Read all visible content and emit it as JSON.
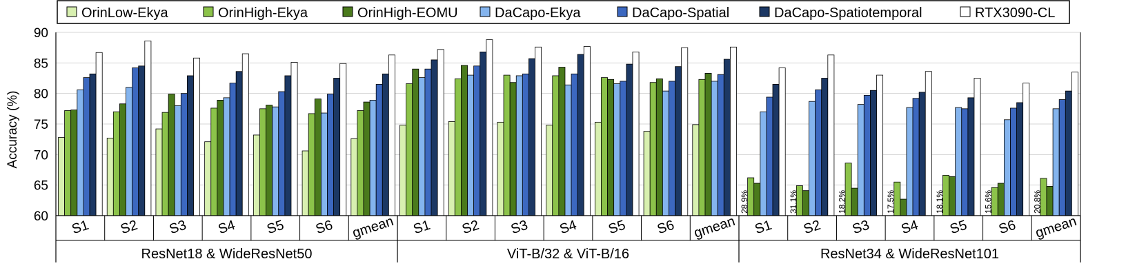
{
  "chart_data": {
    "type": "bar",
    "ylabel": "Accuracy (%)",
    "ylim": [
      60,
      90
    ],
    "yticks": [
      "60",
      "65",
      "70",
      "75",
      "80",
      "85",
      "90"
    ],
    "grid": true,
    "legend_position": "top",
    "series": [
      {
        "name": "OrinLow-Ekya",
        "color": "#d8f0b0"
      },
      {
        "name": "OrinHigh-Ekya",
        "color": "#8cc34a"
      },
      {
        "name": "OrinHigh-EOMU",
        "color": "#4a7a1c"
      },
      {
        "name": "DaCapo-Ekya",
        "color": "#84b4ee"
      },
      {
        "name": "DaCapo-Spatial",
        "color": "#3c68c0"
      },
      {
        "name": "DaCapo-Spatiotemporal",
        "color": "#1c3864"
      },
      {
        "name": "RTX3090-CL",
        "color": "#ffffff"
      }
    ],
    "groups": [
      {
        "name": "ResNet18 & WideResNet50",
        "categories": [
          "S1",
          "S2",
          "S3",
          "S4",
          "S5",
          "S6",
          "gmean"
        ],
        "values": [
          [
            72.8,
            77.2,
            77.3,
            80.6,
            82.6,
            83.2,
            86.7
          ],
          [
            72.7,
            77.0,
            78.3,
            81.0,
            84.2,
            84.5,
            88.6
          ],
          [
            74.2,
            76.9,
            79.9,
            78.0,
            80.0,
            82.9,
            85.8
          ],
          [
            72.1,
            77.6,
            78.9,
            79.3,
            81.7,
            83.6,
            86.5
          ],
          [
            73.2,
            77.5,
            78.1,
            77.8,
            80.3,
            82.9,
            85.1
          ],
          [
            70.6,
            76.7,
            79.1,
            76.8,
            79.9,
            82.5,
            84.9
          ],
          [
            72.6,
            77.2,
            78.6,
            78.9,
            81.5,
            83.2,
            86.3
          ]
        ]
      },
      {
        "name": "ViT-B/32 & ViT-B/16",
        "categories": [
          "S1",
          "S2",
          "S3",
          "S4",
          "S5",
          "S6",
          "gmean"
        ],
        "values": [
          [
            74.8,
            81.6,
            84.0,
            82.6,
            84.0,
            85.5,
            87.2
          ],
          [
            75.4,
            82.4,
            84.6,
            83.0,
            84.5,
            86.8,
            88.8
          ],
          [
            75.3,
            83.0,
            81.8,
            82.9,
            83.2,
            85.7,
            87.6
          ],
          [
            74.8,
            82.9,
            84.3,
            81.4,
            83.2,
            86.4,
            87.7
          ],
          [
            75.3,
            82.6,
            82.3,
            81.6,
            82.0,
            84.8,
            86.8
          ],
          [
            73.8,
            81.8,
            82.4,
            80.4,
            82.0,
            84.4,
            87.5
          ],
          [
            74.9,
            82.3,
            83.3,
            82.0,
            83.1,
            85.6,
            87.6
          ]
        ]
      },
      {
        "name": "ResNet34 & WideResNet101",
        "categories": [
          "S1",
          "S2",
          "S3",
          "S4",
          "S5",
          "S6",
          "gmean"
        ],
        "values": [
          [
            28.9,
            66.2,
            65.3,
            77.0,
            79.4,
            81.5,
            84.2
          ],
          [
            31.1,
            64.9,
            64.1,
            78.7,
            80.6,
            82.5,
            86.3
          ],
          [
            18.2,
            68.6,
            64.5,
            78.2,
            79.7,
            80.5,
            83.0
          ],
          [
            17.5,
            65.5,
            62.7,
            77.7,
            79.2,
            80.2,
            83.6
          ],
          [
            18.1,
            66.6,
            66.4,
            77.7,
            77.5,
            79.3,
            82.5
          ],
          [
            15.6,
            64.6,
            65.3,
            75.7,
            77.6,
            78.5,
            81.7
          ],
          [
            20.8,
            66.1,
            64.8,
            77.5,
            79.0,
            80.4,
            83.5
          ]
        ],
        "off_axis_labels": [
          "28.9%",
          "31.1%",
          "18.2%",
          "17.5%",
          "18.1%",
          "15.6%",
          "20.8%"
        ]
      }
    ]
  }
}
